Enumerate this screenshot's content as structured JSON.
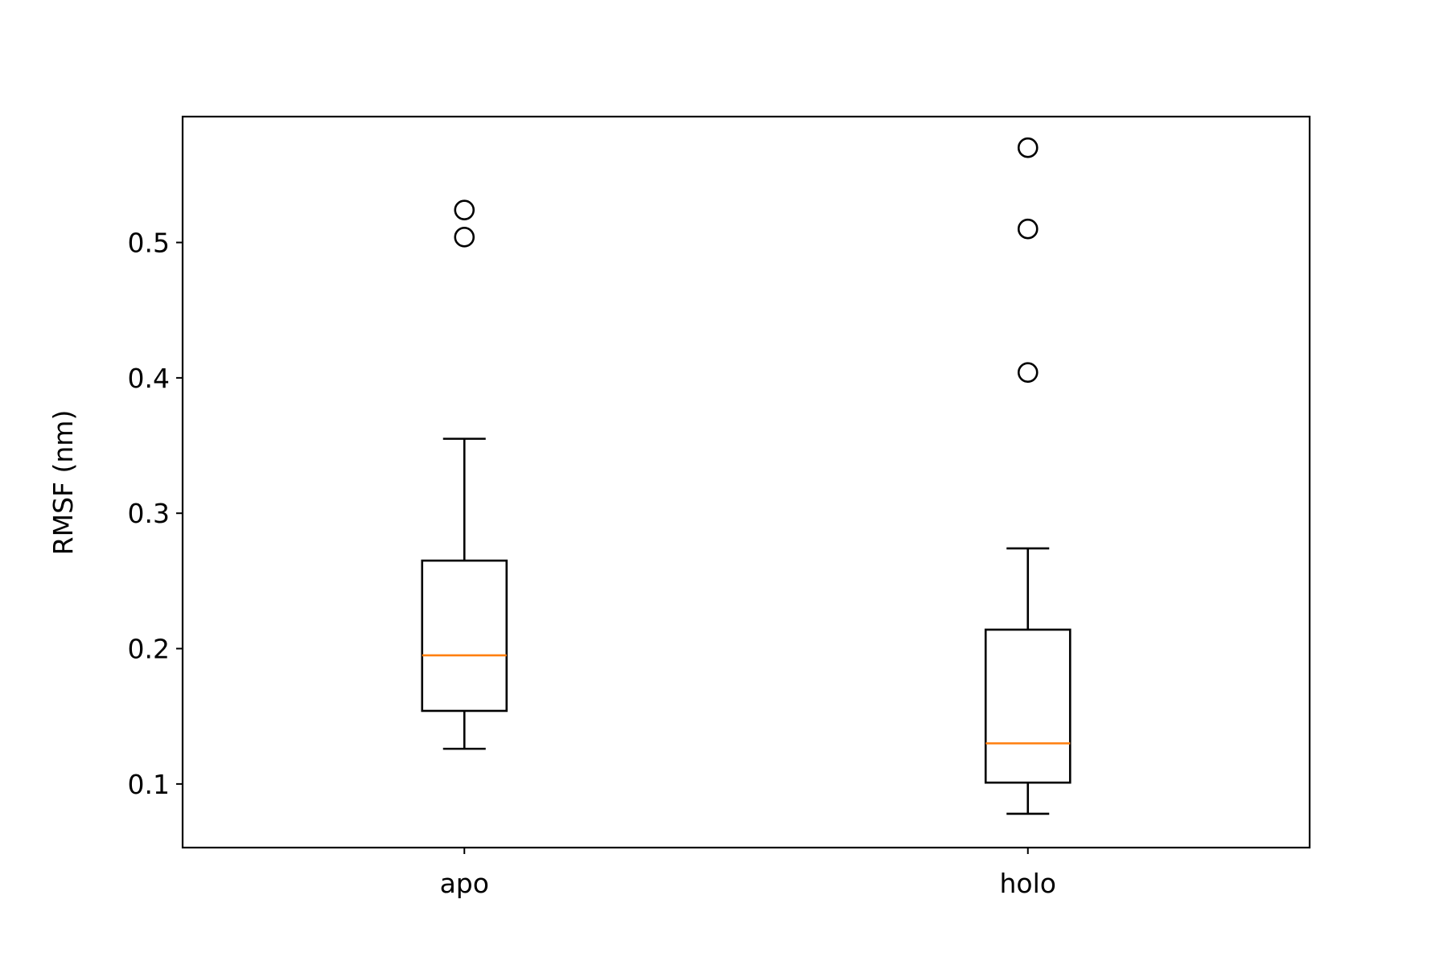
{
  "chart_data": {
    "type": "box",
    "title": "",
    "xlabel": "",
    "ylabel": "RMSF (nm)",
    "categories": [
      "apo",
      "holo"
    ],
    "ylim": [
      0.053,
      0.593
    ],
    "yticks": [
      0.1,
      0.2,
      0.3,
      0.4,
      0.5
    ],
    "ytick_labels": [
      "0.1",
      "0.2",
      "0.3",
      "0.4",
      "0.5"
    ],
    "grid": false,
    "legend": "none",
    "boxes": [
      {
        "name": "apo",
        "whisker_low": 0.126,
        "q1": 0.154,
        "median": 0.195,
        "q3": 0.265,
        "whisker_high": 0.355,
        "outliers": [
          0.504,
          0.524
        ]
      },
      {
        "name": "holo",
        "whisker_low": 0.078,
        "q1": 0.101,
        "median": 0.13,
        "q3": 0.214,
        "whisker_high": 0.274,
        "outliers": [
          0.404,
          0.51,
          0.57
        ]
      }
    ],
    "colors": {
      "box": "#000000",
      "median": "#ff7f0e",
      "outlier": "#000000"
    }
  }
}
